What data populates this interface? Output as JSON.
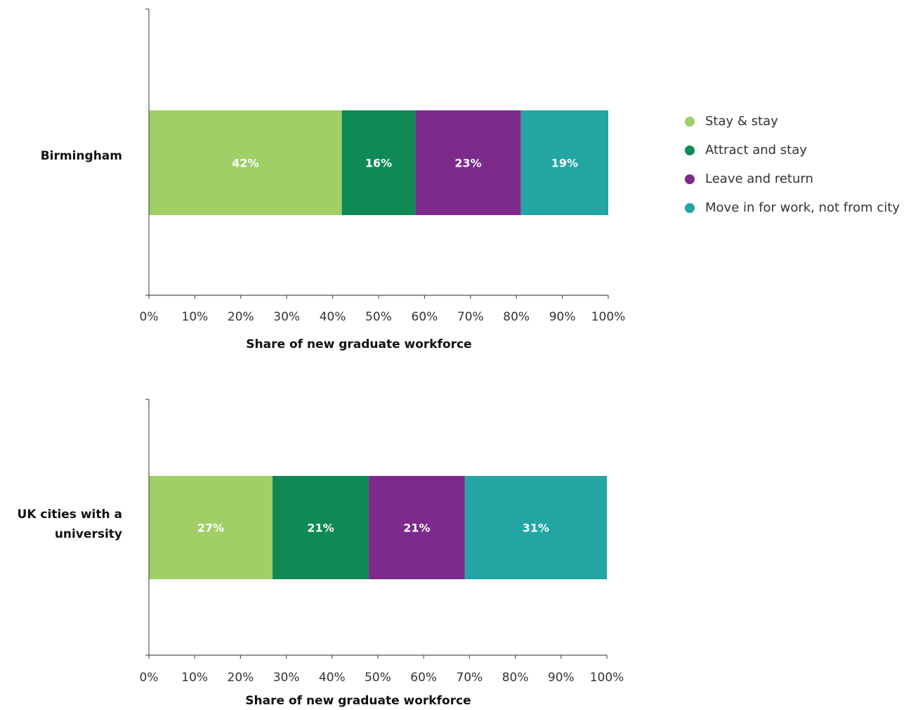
{
  "chart_data": [
    {
      "type": "bar",
      "orientation": "horizontal",
      "stacked": true,
      "categories": [
        "Birmingham"
      ],
      "series": [
        {
          "name": "Stay & stay",
          "values": [
            42
          ],
          "label": "42%",
          "color": "#a0cf67"
        },
        {
          "name": "Attract and stay",
          "values": [
            16
          ],
          "label": "16%",
          "color": "#0f8a55"
        },
        {
          "name": "Leave and return",
          "values": [
            23
          ],
          "label": "23%",
          "color": "#7c2b8b"
        },
        {
          "name": "Move in for work, not from city",
          "values": [
            19
          ],
          "label": "19%",
          "color": "#22a5a3"
        }
      ],
      "xlabel": "Share of new graduate workforce",
      "xlim": [
        0,
        100
      ],
      "xticks": [
        "0%",
        "10%",
        "20%",
        "30%",
        "40%",
        "50%",
        "60%",
        "70%",
        "80%",
        "90%",
        "100%"
      ],
      "grid": false
    },
    {
      "type": "bar",
      "orientation": "horizontal",
      "stacked": true,
      "categories": [
        "UK cities with a university"
      ],
      "category_lines": [
        "UK cities with a",
        "university"
      ],
      "series": [
        {
          "name": "Stay & stay",
          "values": [
            27
          ],
          "label": "27%",
          "color": "#a0cf67"
        },
        {
          "name": "Attract and stay",
          "values": [
            21
          ],
          "label": "21%",
          "color": "#0f8a55"
        },
        {
          "name": "Leave and return",
          "values": [
            21
          ],
          "label": "21%",
          "color": "#7c2b8b"
        },
        {
          "name": "Move in for work, not from city",
          "values": [
            31
          ],
          "label": "31%",
          "color": "#22a5a3"
        }
      ],
      "xlabel": "Share of new graduate workforce",
      "xlim": [
        0,
        100
      ],
      "xticks": [
        "0%",
        "10%",
        "20%",
        "30%",
        "40%",
        "50%",
        "60%",
        "70%",
        "80%",
        "90%",
        "100%"
      ],
      "grid": false
    }
  ],
  "legend": {
    "placement": "right",
    "items": [
      {
        "label": "Stay & stay",
        "color": "#a0cf67"
      },
      {
        "label": "Attract and stay",
        "color": "#0f8a55"
      },
      {
        "label": "Leave and return",
        "color": "#7c2b8b"
      },
      {
        "label": "Move in for work, not from city",
        "color": "#22a5a3"
      }
    ]
  },
  "colors": {
    "axis": "#555555",
    "tick_text": "#333333",
    "label_text": "#111111",
    "bar_label_text": "#ffffff"
  }
}
